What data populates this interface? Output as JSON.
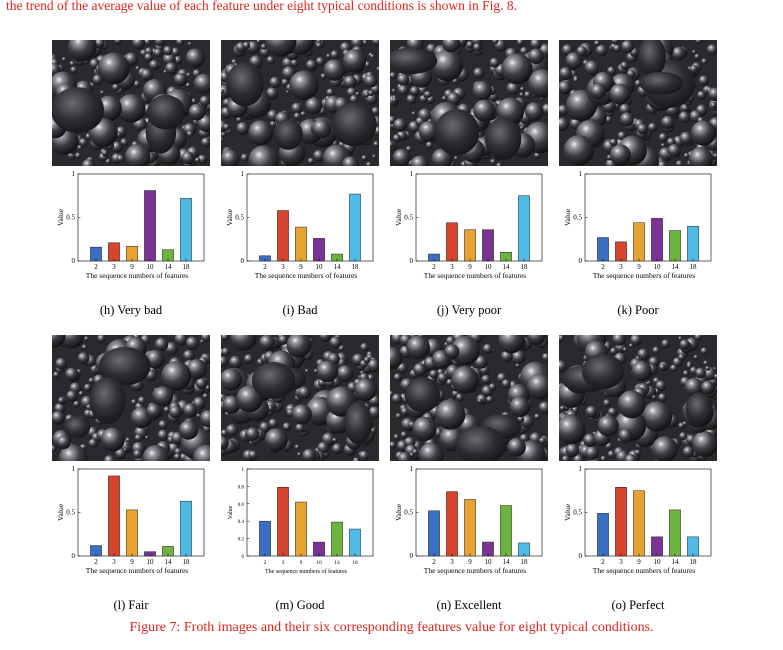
{
  "top_text": "the trend of the average value of each feature under eight typical conditions is shown in Fig. 8.",
  "figure_caption": "Figure 7: Froth images and their six corresponding features value for eight typical conditions.",
  "series_colors": [
    "#3a6fc4",
    "#d6442b",
    "#e6a332",
    "#7a3294",
    "#6db33f",
    "#4dbbe6"
  ],
  "panels": [
    {
      "caption": "(h) Very bad"
    },
    {
      "caption": "(i) Bad"
    },
    {
      "caption": "(j) Very poor"
    },
    {
      "caption": "(k) Poor"
    },
    {
      "caption": "(l) Fair"
    },
    {
      "caption": "(m) Good"
    },
    {
      "caption": "(n) Excellent"
    },
    {
      "caption": "(o) Perfect"
    }
  ],
  "chart_data": [
    {
      "type": "bar",
      "categories": [
        "2",
        "3",
        "9",
        "10",
        "14",
        "18"
      ],
      "values": [
        0.16,
        0.21,
        0.17,
        0.81,
        0.13,
        0.72
      ],
      "xlabel": "The sequence numbers of features",
      "ylabel": "Value",
      "ylim": [
        0,
        1
      ],
      "yticks": [
        "0",
        "0.5",
        "1"
      ]
    },
    {
      "type": "bar",
      "categories": [
        "2",
        "3",
        "9",
        "10",
        "14",
        "18"
      ],
      "values": [
        0.06,
        0.58,
        0.39,
        0.26,
        0.08,
        0.77
      ],
      "xlabel": "The sequence numbers of features",
      "ylabel": "Value",
      "ylim": [
        0,
        1
      ],
      "yticks": [
        "0",
        "0.5",
        "1"
      ]
    },
    {
      "type": "bar",
      "categories": [
        "2",
        "3",
        "9",
        "10",
        "14",
        "18"
      ],
      "values": [
        0.08,
        0.44,
        0.36,
        0.36,
        0.1,
        0.75
      ],
      "xlabel": "The sequence numbers of features",
      "ylabel": "Value",
      "ylim": [
        0,
        1
      ],
      "yticks": [
        "0",
        "0.5",
        "1"
      ]
    },
    {
      "type": "bar",
      "categories": [
        "2",
        "3",
        "9",
        "10",
        "14",
        "18"
      ],
      "values": [
        0.27,
        0.22,
        0.44,
        0.49,
        0.35,
        0.4
      ],
      "xlabel": "The sequence numbers of features",
      "ylabel": "Value",
      "ylim": [
        0,
        1
      ],
      "yticks": [
        "0",
        "0.5",
        "1"
      ]
    },
    {
      "type": "bar",
      "categories": [
        "2",
        "3",
        "9",
        "10",
        "14",
        "18"
      ],
      "values": [
        0.12,
        0.92,
        0.53,
        0.05,
        0.11,
        0.63
      ],
      "xlabel": "The sequence numbers of features",
      "ylabel": "Value",
      "ylim": [
        0,
        1
      ],
      "yticks": [
        "0",
        "0.5",
        "1"
      ]
    },
    {
      "type": "bar",
      "categories": [
        "2",
        "3",
        "9",
        "10",
        "14",
        "18"
      ],
      "values": [
        0.4,
        0.79,
        0.62,
        0.16,
        0.39,
        0.31
      ],
      "xlabel": "The sequence numbers of features",
      "ylabel": "Value",
      "ylim": [
        0,
        1
      ],
      "yticks": [
        "0",
        "0.2",
        "0.4",
        "0.6",
        "0.8",
        "1"
      ]
    },
    {
      "type": "bar",
      "categories": [
        "2",
        "3",
        "9",
        "10",
        "14",
        "18"
      ],
      "values": [
        0.52,
        0.74,
        0.65,
        0.16,
        0.58,
        0.15
      ],
      "xlabel": "The sequence numbers of features",
      "ylabel": "Value",
      "ylim": [
        0,
        1
      ],
      "yticks": [
        "0",
        "0.5",
        "1"
      ]
    },
    {
      "type": "bar",
      "categories": [
        "2",
        "3",
        "9",
        "10",
        "14",
        "18"
      ],
      "values": [
        0.49,
        0.79,
        0.75,
        0.22,
        0.53,
        0.22
      ],
      "xlabel": "The sequence numbers of features",
      "ylabel": "Value",
      "ylim": [
        0,
        1
      ],
      "yticks": [
        "0",
        "0.5",
        "1"
      ]
    }
  ]
}
